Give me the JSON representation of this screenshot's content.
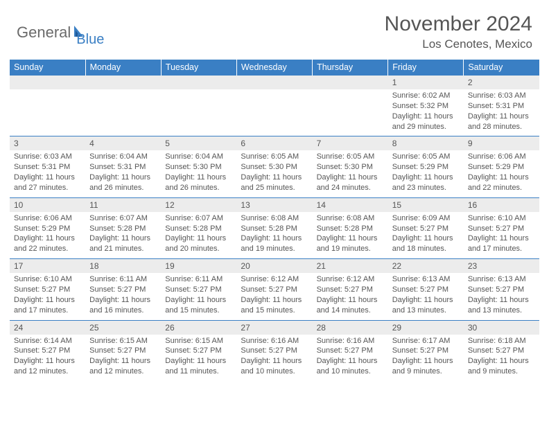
{
  "logo": {
    "text1": "General",
    "text2": "Blue"
  },
  "title": "November 2024",
  "location": "Los Cenotes, Mexico",
  "colors": {
    "header_bg": "#3a7fc4",
    "header_fg": "#ffffff",
    "daynum_bg": "#ececec",
    "rule": "#3a7fc4",
    "text": "#555555",
    "logo_gray": "#6a6a6a",
    "logo_blue": "#3a7fc4"
  },
  "columns": [
    "Sunday",
    "Monday",
    "Tuesday",
    "Wednesday",
    "Thursday",
    "Friday",
    "Saturday"
  ],
  "weeks": [
    {
      "nums": [
        "",
        "",
        "",
        "",
        "",
        "1",
        "2"
      ],
      "cells": [
        {},
        {},
        {},
        {},
        {},
        {
          "sr": "Sunrise: 6:02 AM",
          "ss": "Sunset: 5:32 PM",
          "d1": "Daylight: 11 hours",
          "d2": "and 29 minutes."
        },
        {
          "sr": "Sunrise: 6:03 AM",
          "ss": "Sunset: 5:31 PM",
          "d1": "Daylight: 11 hours",
          "d2": "and 28 minutes."
        }
      ]
    },
    {
      "nums": [
        "3",
        "4",
        "5",
        "6",
        "7",
        "8",
        "9"
      ],
      "cells": [
        {
          "sr": "Sunrise: 6:03 AM",
          "ss": "Sunset: 5:31 PM",
          "d1": "Daylight: 11 hours",
          "d2": "and 27 minutes."
        },
        {
          "sr": "Sunrise: 6:04 AM",
          "ss": "Sunset: 5:31 PM",
          "d1": "Daylight: 11 hours",
          "d2": "and 26 minutes."
        },
        {
          "sr": "Sunrise: 6:04 AM",
          "ss": "Sunset: 5:30 PM",
          "d1": "Daylight: 11 hours",
          "d2": "and 26 minutes."
        },
        {
          "sr": "Sunrise: 6:05 AM",
          "ss": "Sunset: 5:30 PM",
          "d1": "Daylight: 11 hours",
          "d2": "and 25 minutes."
        },
        {
          "sr": "Sunrise: 6:05 AM",
          "ss": "Sunset: 5:30 PM",
          "d1": "Daylight: 11 hours",
          "d2": "and 24 minutes."
        },
        {
          "sr": "Sunrise: 6:05 AM",
          "ss": "Sunset: 5:29 PM",
          "d1": "Daylight: 11 hours",
          "d2": "and 23 minutes."
        },
        {
          "sr": "Sunrise: 6:06 AM",
          "ss": "Sunset: 5:29 PM",
          "d1": "Daylight: 11 hours",
          "d2": "and 22 minutes."
        }
      ]
    },
    {
      "nums": [
        "10",
        "11",
        "12",
        "13",
        "14",
        "15",
        "16"
      ],
      "cells": [
        {
          "sr": "Sunrise: 6:06 AM",
          "ss": "Sunset: 5:29 PM",
          "d1": "Daylight: 11 hours",
          "d2": "and 22 minutes."
        },
        {
          "sr": "Sunrise: 6:07 AM",
          "ss": "Sunset: 5:28 PM",
          "d1": "Daylight: 11 hours",
          "d2": "and 21 minutes."
        },
        {
          "sr": "Sunrise: 6:07 AM",
          "ss": "Sunset: 5:28 PM",
          "d1": "Daylight: 11 hours",
          "d2": "and 20 minutes."
        },
        {
          "sr": "Sunrise: 6:08 AM",
          "ss": "Sunset: 5:28 PM",
          "d1": "Daylight: 11 hours",
          "d2": "and 19 minutes."
        },
        {
          "sr": "Sunrise: 6:08 AM",
          "ss": "Sunset: 5:28 PM",
          "d1": "Daylight: 11 hours",
          "d2": "and 19 minutes."
        },
        {
          "sr": "Sunrise: 6:09 AM",
          "ss": "Sunset: 5:27 PM",
          "d1": "Daylight: 11 hours",
          "d2": "and 18 minutes."
        },
        {
          "sr": "Sunrise: 6:10 AM",
          "ss": "Sunset: 5:27 PM",
          "d1": "Daylight: 11 hours",
          "d2": "and 17 minutes."
        }
      ]
    },
    {
      "nums": [
        "17",
        "18",
        "19",
        "20",
        "21",
        "22",
        "23"
      ],
      "cells": [
        {
          "sr": "Sunrise: 6:10 AM",
          "ss": "Sunset: 5:27 PM",
          "d1": "Daylight: 11 hours",
          "d2": "and 17 minutes."
        },
        {
          "sr": "Sunrise: 6:11 AM",
          "ss": "Sunset: 5:27 PM",
          "d1": "Daylight: 11 hours",
          "d2": "and 16 minutes."
        },
        {
          "sr": "Sunrise: 6:11 AM",
          "ss": "Sunset: 5:27 PM",
          "d1": "Daylight: 11 hours",
          "d2": "and 15 minutes."
        },
        {
          "sr": "Sunrise: 6:12 AM",
          "ss": "Sunset: 5:27 PM",
          "d1": "Daylight: 11 hours",
          "d2": "and 15 minutes."
        },
        {
          "sr": "Sunrise: 6:12 AM",
          "ss": "Sunset: 5:27 PM",
          "d1": "Daylight: 11 hours",
          "d2": "and 14 minutes."
        },
        {
          "sr": "Sunrise: 6:13 AM",
          "ss": "Sunset: 5:27 PM",
          "d1": "Daylight: 11 hours",
          "d2": "and 13 minutes."
        },
        {
          "sr": "Sunrise: 6:13 AM",
          "ss": "Sunset: 5:27 PM",
          "d1": "Daylight: 11 hours",
          "d2": "and 13 minutes."
        }
      ]
    },
    {
      "nums": [
        "24",
        "25",
        "26",
        "27",
        "28",
        "29",
        "30"
      ],
      "cells": [
        {
          "sr": "Sunrise: 6:14 AM",
          "ss": "Sunset: 5:27 PM",
          "d1": "Daylight: 11 hours",
          "d2": "and 12 minutes."
        },
        {
          "sr": "Sunrise: 6:15 AM",
          "ss": "Sunset: 5:27 PM",
          "d1": "Daylight: 11 hours",
          "d2": "and 12 minutes."
        },
        {
          "sr": "Sunrise: 6:15 AM",
          "ss": "Sunset: 5:27 PM",
          "d1": "Daylight: 11 hours",
          "d2": "and 11 minutes."
        },
        {
          "sr": "Sunrise: 6:16 AM",
          "ss": "Sunset: 5:27 PM",
          "d1": "Daylight: 11 hours",
          "d2": "and 10 minutes."
        },
        {
          "sr": "Sunrise: 6:16 AM",
          "ss": "Sunset: 5:27 PM",
          "d1": "Daylight: 11 hours",
          "d2": "and 10 minutes."
        },
        {
          "sr": "Sunrise: 6:17 AM",
          "ss": "Sunset: 5:27 PM",
          "d1": "Daylight: 11 hours",
          "d2": "and 9 minutes."
        },
        {
          "sr": "Sunrise: 6:18 AM",
          "ss": "Sunset: 5:27 PM",
          "d1": "Daylight: 11 hours",
          "d2": "and 9 minutes."
        }
      ]
    }
  ]
}
